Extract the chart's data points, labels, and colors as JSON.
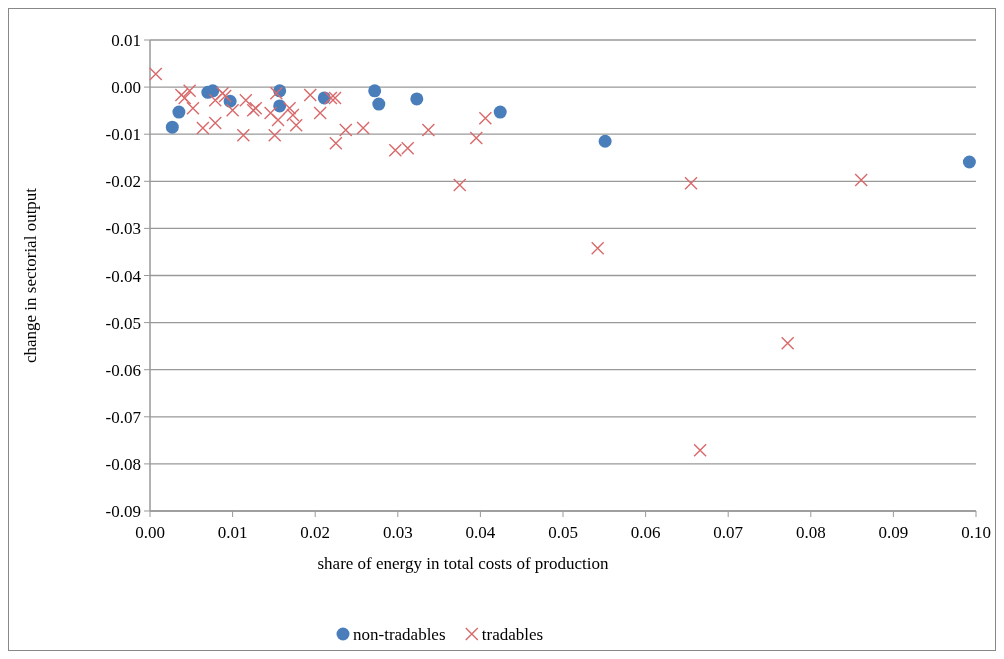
{
  "chart_data": {
    "type": "scatter",
    "xlabel": "share of energy in total costs of production",
    "ylabel": "change in sectorial output",
    "xlim": [
      0,
      0.1
    ],
    "ylim": [
      -0.09,
      0.01
    ],
    "xticks": [
      {
        "value": 0,
        "label": "0.00"
      },
      0.01,
      0.02,
      0.03,
      0.04,
      0.05,
      0.06,
      0.07,
      0.08,
      0.09,
      {
        "value": 0.1,
        "label": "0.10"
      }
    ],
    "yticks": [
      0.01,
      {
        "value": 0,
        "label": "0.00"
      },
      -0.01,
      -0.02,
      -0.03,
      -0.04,
      -0.05,
      -0.06,
      -0.07,
      -0.08,
      -0.09
    ],
    "grid": "y",
    "legend": "bottom",
    "series": [
      {
        "name": "non-tradables",
        "color": "#4a7ebb",
        "marker": "circle",
        "x": [
          0.0027,
          0.0035,
          0.007,
          0.0076,
          0.0097,
          0.0157,
          0.0157,
          0.0211,
          0.0272,
          0.0277,
          0.0323,
          0.0424,
          0.0551,
          0.0992
        ],
        "values": [
          -0.0085,
          -0.0053,
          -0.0011,
          -0.0008,
          -0.003,
          -0.0008,
          -0.004,
          -0.0023,
          -0.0008,
          -0.0036,
          -0.0025,
          -0.0053,
          -0.0115,
          -0.0159
        ]
      },
      {
        "name": "tradables",
        "color": "#d9696a",
        "marker": "cross",
        "x": [
          0.0007,
          0.0038,
          0.0048,
          0.0042,
          0.0052,
          0.0064,
          0.0079,
          0.0079,
          0.0088,
          0.0091,
          0.01,
          0.0113,
          0.0116,
          0.0125,
          0.0128,
          0.0146,
          0.0151,
          0.0155,
          0.0153,
          0.0169,
          0.0177,
          0.0173,
          0.0194,
          0.0206,
          0.0224,
          0.0225,
          0.0219,
          0.0237,
          0.0258,
          0.0297,
          0.0312,
          0.0337,
          0.0375,
          0.0395,
          0.0406,
          0.0542,
          0.0655,
          0.0772,
          0.0666,
          0.0861
        ],
        "values": [
          0.0028,
          -0.0017,
          -0.0008,
          -0.0023,
          -0.0045,
          -0.0087,
          -0.0076,
          -0.0028,
          -0.0013,
          -0.0019,
          -0.0049,
          -0.0102,
          -0.0028,
          -0.0049,
          -0.0045,
          -0.0055,
          -0.0102,
          -0.007,
          -0.0013,
          -0.0045,
          -0.0081,
          -0.0059,
          -0.0017,
          -0.0055,
          -0.0023,
          -0.0119,
          -0.0023,
          -0.0091,
          -0.0087,
          -0.0134,
          -0.013,
          -0.0091,
          -0.0208,
          -0.0108,
          -0.0066,
          -0.0342,
          -0.0204,
          -0.0544,
          -0.0771,
          -0.0197
        ]
      }
    ]
  }
}
